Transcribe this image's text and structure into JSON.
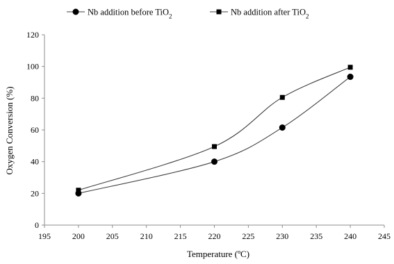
{
  "chart_data": {
    "type": "line",
    "xlabel": "Temperature (ºC)",
    "ylabel": "Oxygen Conversion (%)",
    "xlim": [
      195,
      245
    ],
    "ylim": [
      0,
      120
    ],
    "xticks": [
      195,
      200,
      205,
      210,
      215,
      220,
      225,
      230,
      235,
      240,
      245
    ],
    "yticks": [
      0,
      20,
      40,
      60,
      80,
      100,
      120
    ],
    "grid": false,
    "legend_position": "top",
    "series": [
      {
        "name": "Nb addition before TiO2",
        "marker": "circle",
        "color": "#000000",
        "x": [
          200,
          220,
          230,
          240
        ],
        "y": [
          20,
          40,
          61.5,
          93.5
        ]
      },
      {
        "name": "Nb addition after TiO2",
        "marker": "square",
        "color": "#000000",
        "x": [
          200,
          220,
          230,
          240
        ],
        "y": [
          22,
          49.5,
          80.5,
          99.5
        ]
      }
    ]
  }
}
